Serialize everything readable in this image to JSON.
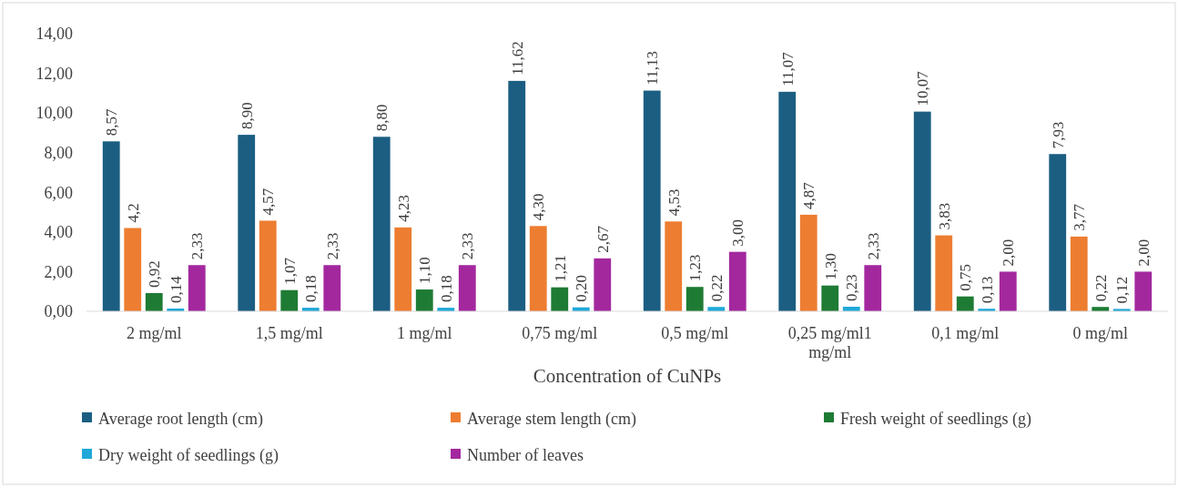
{
  "chart_data": {
    "type": "bar",
    "xlabel": "Concentration of CuNPs",
    "categories": [
      "2 mg/ml",
      "1,5 mg/ml",
      "1 mg/ml",
      "0,75 mg/ml",
      "0,5 mg/ml",
      "0,25 mg/ml1 mg/ml",
      "0,1 mg/ml",
      "0 mg/ml"
    ],
    "series": [
      {
        "name": "Average root length (cm)",
        "color": "#1b5e82",
        "values": [
          8.57,
          8.9,
          8.8,
          11.62,
          11.13,
          11.07,
          10.07,
          7.93
        ],
        "value_labels": [
          "8,57",
          "8,90",
          "8,80",
          "11,62",
          "11,13",
          "11,07",
          "10,07",
          "7,93"
        ]
      },
      {
        "name": "Average stem length (cm)",
        "color": "#ed7d31",
        "values": [
          4.2,
          4.57,
          4.23,
          4.3,
          4.53,
          4.87,
          3.83,
          3.77
        ],
        "value_labels": [
          "4,2",
          "4,57",
          "4,23",
          "4,30",
          "4,53",
          "4,87",
          "3,83",
          "3,77"
        ]
      },
      {
        "name": "Fresh weight of seedlings (g)",
        "color": "#1e7b34",
        "values": [
          0.92,
          1.07,
          1.1,
          1.21,
          1.23,
          1.3,
          0.75,
          0.22
        ],
        "value_labels": [
          "0,92",
          "1,07",
          "1,10",
          "1,21",
          "1,23",
          "1,30",
          "0,75",
          "0,22"
        ]
      },
      {
        "name": "Dry weight of seedlings (g)",
        "color": "#1fa8d8",
        "values": [
          0.14,
          0.18,
          0.18,
          0.2,
          0.22,
          0.23,
          0.13,
          0.12
        ],
        "value_labels": [
          "0,14",
          "0,18",
          "0,18",
          "0,20",
          "0,22",
          "0,23",
          "0,13",
          "0,12"
        ]
      },
      {
        "name": "Number of leaves",
        "color": "#a3289e",
        "values": [
          2.33,
          2.33,
          2.33,
          2.67,
          3.0,
          2.33,
          2.0,
          2.0
        ],
        "value_labels": [
          "2,33",
          "2,33",
          "2,33",
          "2,67",
          "3,00",
          "2,33",
          "2,00",
          "2,00"
        ]
      }
    ],
    "ylim": [
      0,
      14
    ],
    "yticks": [
      {
        "value": 0,
        "label": "0,00"
      },
      {
        "value": 2,
        "label": "2,00"
      },
      {
        "value": 4,
        "label": "4,00"
      },
      {
        "value": 6,
        "label": "6,00"
      },
      {
        "value": 8,
        "label": "8,00"
      },
      {
        "value": 10,
        "label": "10,00"
      },
      {
        "value": 12,
        "label": "12,00"
      },
      {
        "value": 14,
        "label": "14,00"
      }
    ],
    "grid": false,
    "legend": "bottom"
  }
}
